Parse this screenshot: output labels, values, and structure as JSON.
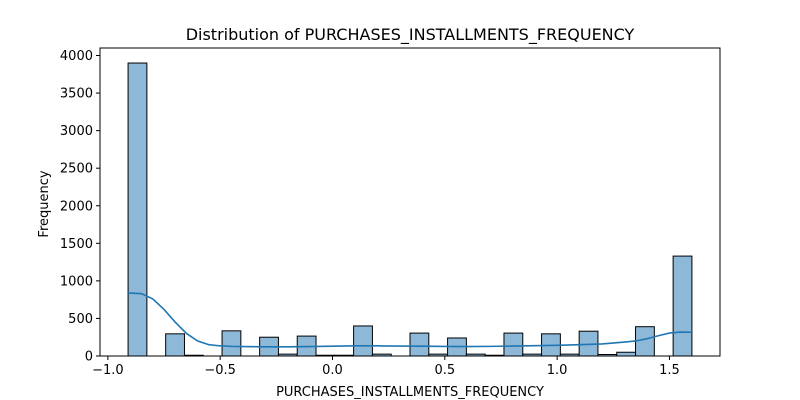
{
  "chart_data": {
    "type": "bar",
    "title": "Distribution of PURCHASES_INSTALLMENTS_FREQUENCY",
    "xlabel": "PURCHASES_INSTALLMENTS_FREQUENCY",
    "ylabel": "Frequency",
    "xlim": [
      -1.035,
      1.725
    ],
    "ylim": [
      0,
      4100
    ],
    "x_ticks": [
      -1.0,
      -0.5,
      0.0,
      0.5,
      1.0,
      1.5
    ],
    "x_tick_labels": [
      "−1.0",
      "−0.5",
      "0.0",
      "0.5",
      "1.0",
      "1.5"
    ],
    "y_ticks": [
      0,
      500,
      1000,
      1500,
      2000,
      2500,
      3000,
      3500,
      4000
    ],
    "y_tick_labels": [
      "0",
      "500",
      "1000",
      "1500",
      "2000",
      "2500",
      "3000",
      "3500",
      "4000"
    ],
    "bins": {
      "start": -0.91,
      "end": 1.6,
      "counts": [
        3900,
        0,
        295,
        10,
        0,
        335,
        0,
        250,
        25,
        265,
        10,
        10,
        400,
        25,
        0,
        305,
        25,
        240,
        25,
        10,
        305,
        25,
        295,
        25,
        330,
        20,
        50,
        390,
        0,
        1330
      ]
    },
    "kde": {
      "x": [
        -0.91,
        -0.85,
        -0.8,
        -0.75,
        -0.7,
        -0.65,
        -0.6,
        -0.55,
        -0.5,
        -0.45,
        -0.4,
        -0.3,
        -0.2,
        -0.1,
        0.0,
        0.1,
        0.2,
        0.3,
        0.4,
        0.5,
        0.6,
        0.7,
        0.8,
        0.9,
        1.0,
        1.1,
        1.2,
        1.3,
        1.35,
        1.4,
        1.45,
        1.5,
        1.55,
        1.6
      ],
      "y": [
        840,
        830,
        760,
        620,
        450,
        300,
        200,
        150,
        135,
        128,
        125,
        122,
        122,
        125,
        130,
        135,
        135,
        132,
        130,
        127,
        126,
        128,
        132,
        137,
        142,
        150,
        160,
        185,
        200,
        230,
        270,
        305,
        318,
        315
      ]
    },
    "bar_color": "#8db8d8",
    "bar_edge_color": "#000000",
    "kde_color": "#1f77b4",
    "grid": false,
    "legend": "none"
  }
}
